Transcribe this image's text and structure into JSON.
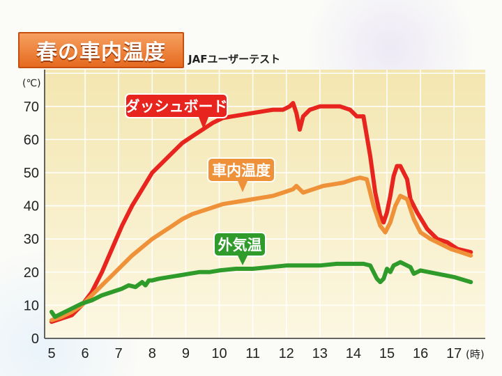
{
  "title": "春の車内温度",
  "subtitle": "JAFユーザーテスト",
  "chart_data": {
    "type": "line",
    "y_unit": "(℃)",
    "x_unit": "(時)",
    "x_ticks": [
      "5",
      "6",
      "7",
      "8",
      "9",
      "10",
      "11",
      "12",
      "13",
      "14",
      "15",
      "16",
      "17"
    ],
    "y_ticks": [
      "0",
      "10",
      "20",
      "30",
      "40",
      "50",
      "60",
      "70"
    ],
    "xlim": [
      5,
      17.5
    ],
    "ylim": [
      0,
      80
    ],
    "grid": true,
    "series": [
      {
        "name": "ダッシュボード",
        "color": "#e8241e",
        "label_color": "#e8241e",
        "x": [
          5.0,
          5.3,
          5.6,
          5.9,
          6.2,
          6.5,
          6.8,
          7.1,
          7.4,
          7.7,
          8.0,
          8.3,
          8.6,
          8.9,
          9.2,
          9.5,
          9.8,
          10.1,
          10.4,
          10.7,
          11.0,
          11.3,
          11.6,
          11.9,
          12.1,
          12.2,
          12.3,
          12.4,
          12.5,
          12.7,
          13.0,
          13.3,
          13.6,
          13.9,
          14.1,
          14.3,
          14.5,
          14.65,
          14.8,
          14.9,
          15.0,
          15.1,
          15.2,
          15.3,
          15.4,
          15.6,
          15.7,
          15.9,
          16.2,
          16.5,
          16.8,
          17.1,
          17.5
        ],
        "y": [
          5,
          6,
          7,
          10,
          14,
          20,
          27,
          34,
          40,
          45,
          50,
          53,
          56,
          59,
          61,
          63,
          65,
          66.5,
          67,
          67.5,
          68,
          68.5,
          69,
          69,
          70,
          71,
          68,
          63,
          67,
          69,
          70,
          70,
          70,
          69,
          67,
          67,
          55,
          44,
          37,
          35,
          38,
          43,
          49,
          52,
          52,
          48,
          42,
          38,
          33,
          30,
          29,
          27,
          26
        ]
      },
      {
        "name": "車内温度",
        "color": "#ee9138",
        "label_color": "#ee9138",
        "x": [
          5.0,
          5.3,
          5.6,
          5.9,
          6.2,
          6.5,
          6.8,
          7.1,
          7.4,
          7.7,
          8.0,
          8.3,
          8.6,
          8.9,
          9.2,
          9.5,
          9.8,
          10.1,
          10.4,
          10.7,
          11.0,
          11.3,
          11.6,
          11.9,
          12.2,
          12.3,
          12.5,
          12.8,
          13.1,
          13.4,
          13.7,
          14.0,
          14.2,
          14.4,
          14.6,
          14.8,
          14.95,
          15.1,
          15.25,
          15.4,
          15.6,
          15.8,
          16.0,
          16.3,
          16.6,
          16.9,
          17.2,
          17.5
        ],
        "y": [
          5.5,
          6.5,
          8,
          10,
          13,
          16,
          19,
          22,
          25,
          27.5,
          30,
          32,
          34,
          36,
          37.5,
          38.5,
          39.5,
          40.5,
          41,
          41.5,
          42,
          42.5,
          43,
          44,
          45,
          46,
          44,
          45,
          46,
          46.5,
          47,
          48,
          48.5,
          48,
          40,
          34,
          32,
          35,
          40,
          43,
          42,
          36,
          32,
          30,
          28.5,
          27,
          26,
          25
        ]
      },
      {
        "name": "外気温",
        "color": "#2e9b2a",
        "label_color": "#2e9b2a",
        "x": [
          5.0,
          5.1,
          5.3,
          5.6,
          5.9,
          6.2,
          6.5,
          6.8,
          7.1,
          7.3,
          7.5,
          7.7,
          7.8,
          7.9,
          8.0,
          8.2,
          8.5,
          8.8,
          9.1,
          9.4,
          9.7,
          10.0,
          10.5,
          11.0,
          11.5,
          12.0,
          12.5,
          13.0,
          13.5,
          14.0,
          14.3,
          14.5,
          14.7,
          14.8,
          14.9,
          15.0,
          15.1,
          15.2,
          15.4,
          15.6,
          15.7,
          15.8,
          16.0,
          16.5,
          17.0,
          17.5
        ],
        "y": [
          8,
          6.5,
          7.5,
          9,
          10.5,
          11.5,
          13,
          14,
          15,
          16,
          15.5,
          17,
          16,
          17.5,
          17.5,
          18,
          18.5,
          19,
          19.5,
          20,
          20,
          20.5,
          21,
          21,
          21.5,
          22,
          22,
          22,
          22.5,
          22.5,
          22.5,
          22,
          18,
          17,
          18,
          21,
          20,
          22,
          23,
          22,
          21.5,
          19.5,
          20.5,
          19.5,
          18.5,
          17
        ]
      }
    ]
  }
}
